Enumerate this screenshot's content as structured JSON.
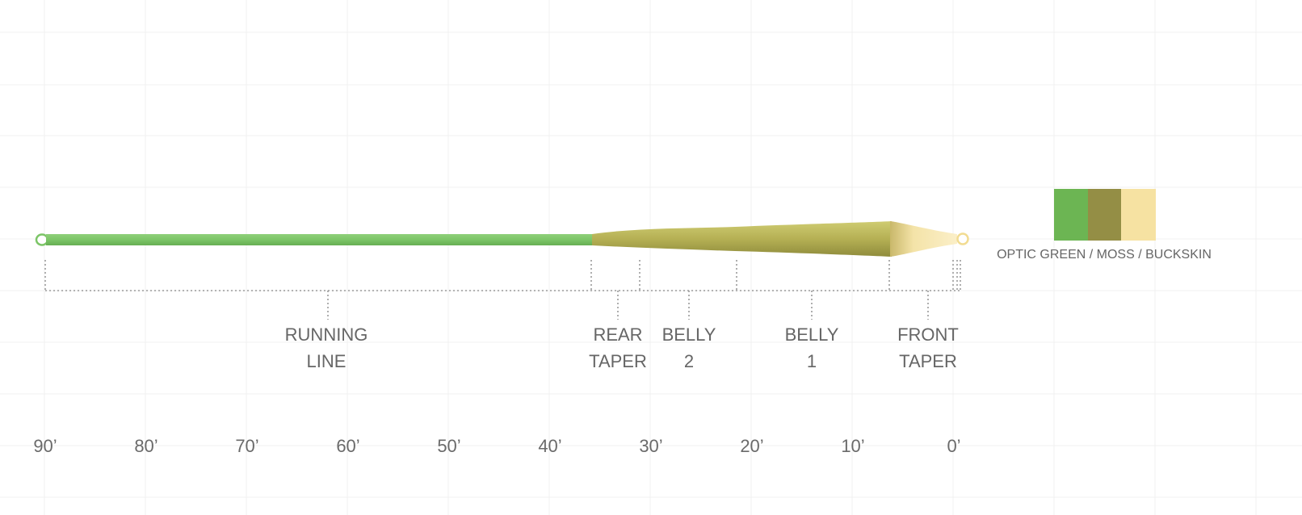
{
  "line": {
    "sections": [
      {
        "key": "running",
        "line1": "RUNNING",
        "line2": "LINE"
      },
      {
        "key": "rear",
        "line1": "REAR",
        "line2": "TAPER"
      },
      {
        "key": "belly2",
        "line1": "BELLY",
        "line2": "2"
      },
      {
        "key": "belly1",
        "line1": "BELLY",
        "line2": "1"
      },
      {
        "key": "front",
        "line1": "FRONT",
        "line2": "TAPER"
      }
    ],
    "scale": [
      "90’",
      "80’",
      "70’",
      "60’",
      "50’",
      "40’",
      "30’",
      "20’",
      "10’",
      "0’"
    ]
  },
  "legend": {
    "label": "OPTIC GREEN / MOSS / BUCKSKIN",
    "colors": [
      "#6cb553",
      "#948e45",
      "#f6e2a2"
    ]
  }
}
